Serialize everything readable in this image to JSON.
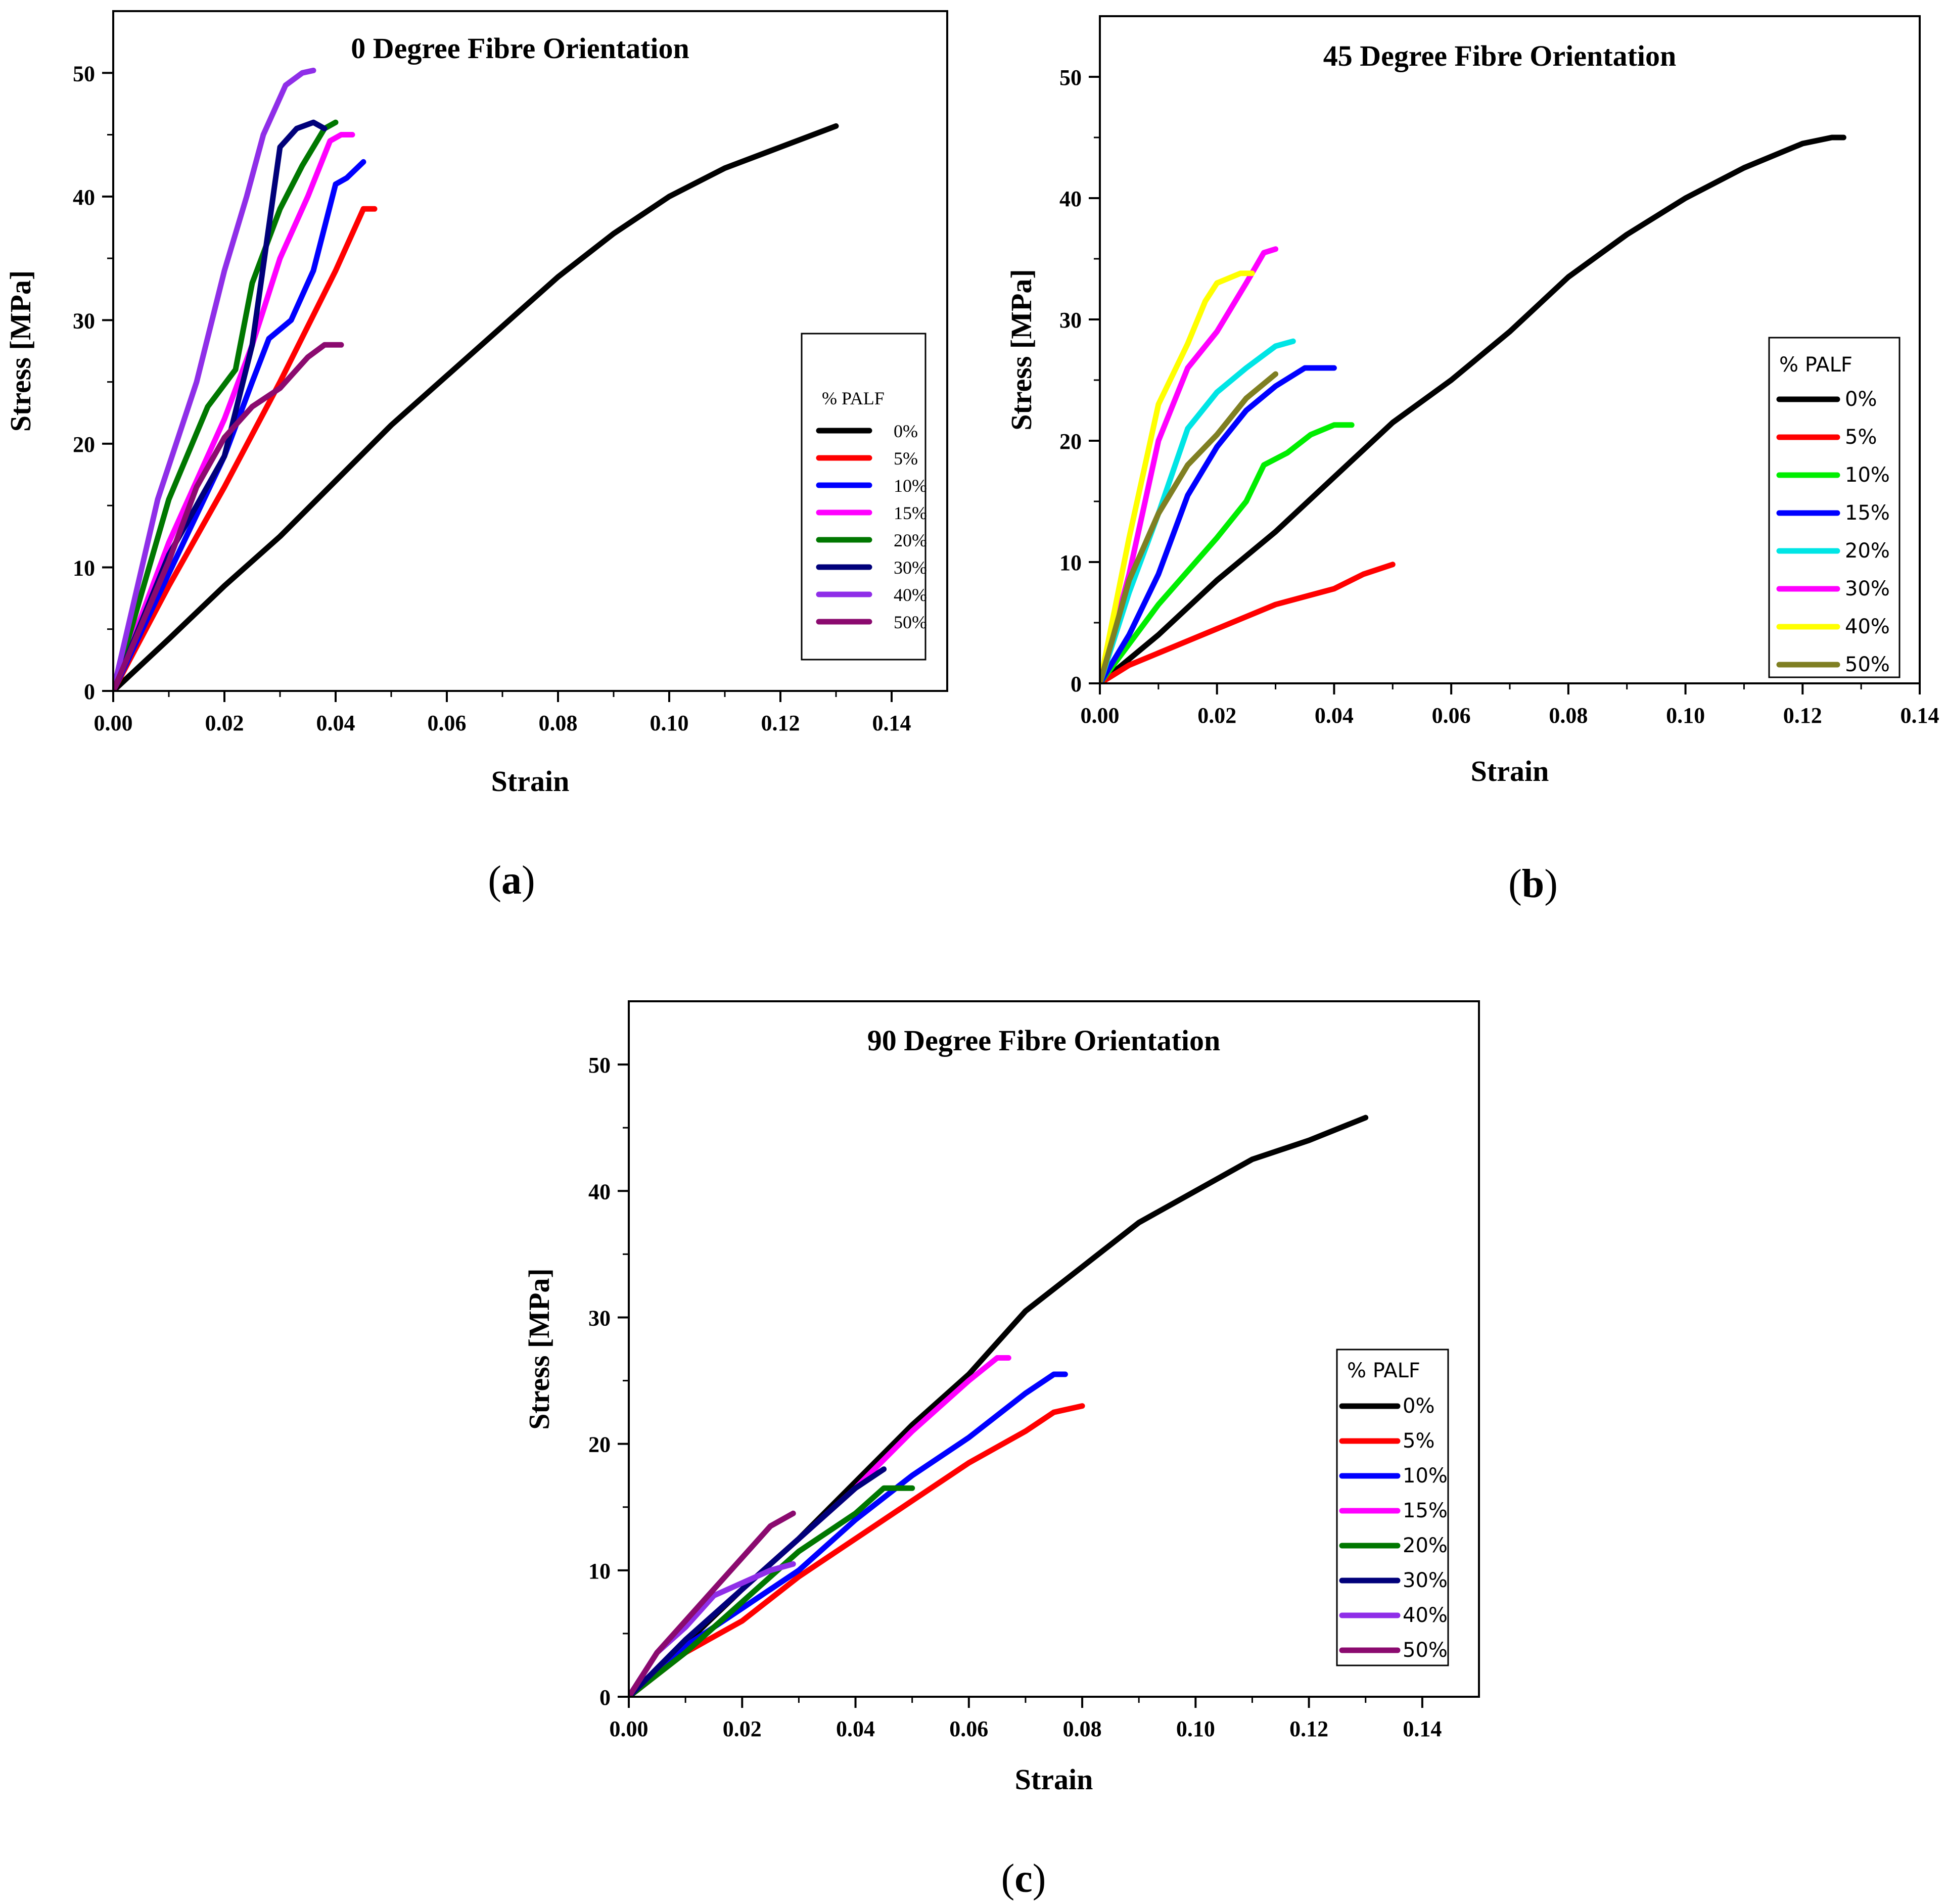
{
  "chart_data": [
    {
      "type": "line",
      "panel": "(a)",
      "panel_letter": "a",
      "title": "0 Degree Fibre Orientation",
      "xlabel": "Strain",
      "ylabel": "Stress [MPa]",
      "xlim": [
        0,
        0.15
      ],
      "ylim": [
        0,
        55
      ],
      "xticks": [
        "0.00",
        "0.02",
        "0.04",
        "0.06",
        "0.08",
        "0.10",
        "0.12",
        "0.14"
      ],
      "yticks": [
        "0",
        "10",
        "20",
        "30",
        "40",
        "50"
      ],
      "legend_title": "% PALF",
      "legend_position": "right",
      "series": [
        {
          "name": "0%",
          "color": "#000000",
          "x": [
            0,
            0.01,
            0.02,
            0.03,
            0.04,
            0.05,
            0.06,
            0.07,
            0.08,
            0.09,
            0.1,
            0.11,
            0.12,
            0.13
          ],
          "y": [
            0,
            4.2,
            8.5,
            12.5,
            17,
            21.5,
            25.5,
            29.5,
            33.5,
            37,
            40,
            42.3,
            44,
            45.7
          ]
        },
        {
          "name": "5%",
          "color": "#ff0000",
          "x": [
            0,
            0.01,
            0.02,
            0.03,
            0.04,
            0.045,
            0.047
          ],
          "y": [
            0,
            8.5,
            16.5,
            25,
            34,
            39,
            39
          ]
        },
        {
          "name": "10%",
          "color": "#0000ff",
          "x": [
            0,
            0.01,
            0.02,
            0.025,
            0.028,
            0.032,
            0.036,
            0.04,
            0.042,
            0.045
          ],
          "y": [
            0,
            9.5,
            19,
            25,
            28.5,
            30,
            34,
            41,
            41.5,
            42.8
          ]
        },
        {
          "name": "15%",
          "color": "#ff00ff",
          "x": [
            0,
            0.01,
            0.02,
            0.025,
            0.03,
            0.035,
            0.039,
            0.041,
            0.043
          ],
          "y": [
            0,
            12,
            22,
            28,
            35,
            40,
            44.5,
            45,
            45
          ]
        },
        {
          "name": "20%",
          "color": "#007700",
          "x": [
            0,
            0.01,
            0.017,
            0.022,
            0.025,
            0.03,
            0.034,
            0.038,
            0.04
          ],
          "y": [
            0,
            15.5,
            23,
            26,
            33,
            39,
            42.5,
            45.5,
            46
          ]
        },
        {
          "name": "30%",
          "color": "#00007a",
          "x": [
            0,
            0.01,
            0.02,
            0.025,
            0.03,
            0.033,
            0.036,
            0.038
          ],
          "y": [
            0,
            11,
            19,
            28,
            44,
            45.5,
            46,
            45.5
          ]
        },
        {
          "name": "40%",
          "color": "#8f2ee8",
          "x": [
            0,
            0.008,
            0.015,
            0.02,
            0.024,
            0.027,
            0.031,
            0.034,
            0.036
          ],
          "y": [
            0,
            15.5,
            25,
            34,
            40,
            45,
            49,
            50,
            50.2
          ]
        },
        {
          "name": "50%",
          "color": "#8b0a6f",
          "x": [
            0,
            0.01,
            0.015,
            0.02,
            0.025,
            0.03,
            0.035,
            0.038,
            0.041
          ],
          "y": [
            0,
            10.5,
            16.5,
            20.5,
            23,
            24.5,
            27,
            28,
            28
          ]
        }
      ]
    },
    {
      "type": "line",
      "panel": "(b)",
      "panel_letter": "b",
      "title": "45 Degree Fibre Orientation",
      "xlabel": "Strain",
      "ylabel": "Stress [MPa]",
      "xlim": [
        0,
        0.14
      ],
      "ylim": [
        0,
        55
      ],
      "xticks": [
        "0.00",
        "0.02",
        "0.04",
        "0.06",
        "0.08",
        "0.10",
        "0.12",
        "0.14"
      ],
      "yticks": [
        "0",
        "10",
        "20",
        "30",
        "40",
        "50"
      ],
      "legend_title": "% PALF",
      "legend_position": "right",
      "series": [
        {
          "name": "0%",
          "color": "#000000",
          "x": [
            0,
            0.01,
            0.02,
            0.03,
            0.04,
            0.05,
            0.06,
            0.07,
            0.08,
            0.09,
            0.1,
            0.11,
            0.12,
            0.125,
            0.127
          ],
          "y": [
            0,
            4,
            8.5,
            12.5,
            17,
            21.5,
            25,
            29,
            33.5,
            37,
            40,
            42.5,
            44.5,
            45,
            45
          ]
        },
        {
          "name": "5%",
          "color": "#ff0000",
          "x": [
            0,
            0.005,
            0.01,
            0.02,
            0.03,
            0.04,
            0.045,
            0.05
          ],
          "y": [
            0,
            1.5,
            2.5,
            4.5,
            6.5,
            7.8,
            9,
            9.8
          ]
        },
        {
          "name": "10%",
          "color": "#00ee00",
          "x": [
            0,
            0.01,
            0.02,
            0.025,
            0.028,
            0.032,
            0.036,
            0.04,
            0.043
          ],
          "y": [
            0,
            6.5,
            12,
            15,
            18,
            19,
            20.5,
            21.3,
            21.3
          ]
        },
        {
          "name": "15%",
          "color": "#0000ff",
          "x": [
            0,
            0.005,
            0.01,
            0.015,
            0.02,
            0.025,
            0.03,
            0.035,
            0.037,
            0.04
          ],
          "y": [
            0,
            4,
            9,
            15.5,
            19.5,
            22.5,
            24.5,
            26,
            26,
            26
          ]
        },
        {
          "name": "20%",
          "color": "#00e5e5",
          "x": [
            0,
            0.005,
            0.01,
            0.015,
            0.02,
            0.025,
            0.03,
            0.033
          ],
          "y": [
            0,
            7.5,
            14,
            21,
            24,
            26,
            27.8,
            28.2
          ]
        },
        {
          "name": "30%",
          "color": "#ff00ff",
          "x": [
            0,
            0.005,
            0.01,
            0.015,
            0.02,
            0.025,
            0.028,
            0.03
          ],
          "y": [
            0,
            9,
            20,
            26,
            29,
            33,
            35.5,
            35.8
          ]
        },
        {
          "name": "40%",
          "color": "#ffff00",
          "x": [
            0,
            0.005,
            0.01,
            0.015,
            0.018,
            0.02,
            0.024,
            0.026
          ],
          "y": [
            0,
            12,
            23,
            28,
            31.5,
            33,
            33.8,
            33.8
          ]
        },
        {
          "name": "50%",
          "color": "#7f7f22",
          "x": [
            0,
            0.005,
            0.01,
            0.015,
            0.02,
            0.025,
            0.03
          ],
          "y": [
            0,
            8.5,
            14,
            18,
            20.5,
            23.5,
            25.5
          ]
        }
      ]
    },
    {
      "type": "line",
      "panel": "(c)",
      "panel_letter": "c",
      "title": "90 Degree Fibre Orientation",
      "xlabel": "Strain",
      "ylabel": "Stress [MPa]",
      "xlim": [
        0,
        0.15
      ],
      "ylim": [
        0,
        55
      ],
      "xticks": [
        "0.00",
        "0.02",
        "0.04",
        "0.06",
        "0.08",
        "0.10",
        "0.12",
        "0.14"
      ],
      "yticks": [
        "0",
        "10",
        "20",
        "30",
        "40",
        "50"
      ],
      "legend_title": "% PALF",
      "legend_position": "right",
      "series": [
        {
          "name": "0%",
          "color": "#000000",
          "x": [
            0,
            0.01,
            0.02,
            0.03,
            0.04,
            0.05,
            0.06,
            0.07,
            0.08,
            0.09,
            0.1,
            0.11,
            0.12,
            0.13
          ],
          "y": [
            0,
            4.2,
            8.5,
            12.5,
            17,
            21.5,
            25.5,
            30.5,
            34,
            37.5,
            40,
            42.5,
            44,
            45.8
          ]
        },
        {
          "name": "5%",
          "color": "#ff0000",
          "x": [
            0,
            0.01,
            0.02,
            0.03,
            0.04,
            0.05,
            0.06,
            0.07,
            0.075,
            0.08
          ],
          "y": [
            0,
            3.5,
            6,
            9.5,
            12.5,
            15.5,
            18.5,
            21,
            22.5,
            23
          ]
        },
        {
          "name": "10%",
          "color": "#0000ff",
          "x": [
            0,
            0.01,
            0.02,
            0.03,
            0.04,
            0.05,
            0.06,
            0.07,
            0.075,
            0.077
          ],
          "y": [
            0,
            4,
            7,
            10,
            14,
            17.5,
            20.5,
            24,
            25.5,
            25.5
          ]
        },
        {
          "name": "15%",
          "color": "#ff00ff",
          "x": [
            0,
            0.01,
            0.02,
            0.03,
            0.04,
            0.05,
            0.06,
            0.065,
            0.067
          ],
          "y": [
            0,
            4.5,
            8.5,
            12.5,
            16.5,
            21,
            25,
            26.8,
            26.8
          ]
        },
        {
          "name": "20%",
          "color": "#007700",
          "x": [
            0,
            0.01,
            0.02,
            0.03,
            0.04,
            0.045,
            0.05
          ],
          "y": [
            0,
            3.5,
            7.5,
            11.5,
            14.5,
            16.5,
            16.5
          ]
        },
        {
          "name": "30%",
          "color": "#00007a",
          "x": [
            0,
            0.01,
            0.02,
            0.03,
            0.04,
            0.045
          ],
          "y": [
            0,
            4.5,
            8.5,
            12.5,
            16.5,
            18
          ]
        },
        {
          "name": "40%",
          "color": "#8f2ee8",
          "x": [
            0,
            0.005,
            0.01,
            0.015,
            0.02,
            0.025,
            0.029
          ],
          "y": [
            0,
            3.5,
            5.5,
            8,
            9,
            10,
            10.5
          ]
        },
        {
          "name": "50%",
          "color": "#8b0a6f",
          "x": [
            0,
            0.005,
            0.01,
            0.015,
            0.02,
            0.025,
            0.029
          ],
          "y": [
            0,
            3.5,
            6,
            8.5,
            11,
            13.5,
            14.5
          ]
        }
      ]
    }
  ]
}
